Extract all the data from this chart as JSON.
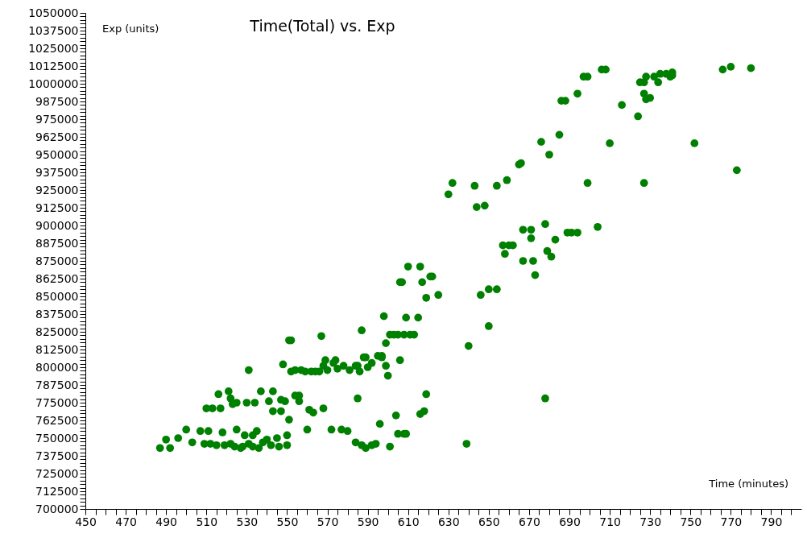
{
  "chart_data": {
    "type": "scatter",
    "title": "Time(Total) vs. Exp",
    "xlabel": "Time (minutes)",
    "ylabel": "Exp (units)",
    "color": "#008000",
    "marker": "circle",
    "grid": false,
    "xlim": [
      450,
      805
    ],
    "ylim": [
      700000,
      1050000
    ],
    "xticks": [
      450,
      {
        "value": 455,
        "label": null
      },
      {
        "value": 460,
        "label": null
      },
      {
        "value": 465,
        "label": null
      },
      470,
      {
        "value": 475,
        "label": null
      },
      {
        "value": 480,
        "label": null
      },
      {
        "value": 485,
        "label": null
      },
      490,
      {
        "value": 495,
        "label": null
      },
      {
        "value": 500,
        "label": null
      },
      {
        "value": 505,
        "label": null
      },
      510,
      {
        "value": 515,
        "label": null
      },
      {
        "value": 520,
        "label": null
      },
      {
        "value": 525,
        "label": null
      },
      530,
      {
        "value": 535,
        "label": null
      },
      {
        "value": 540,
        "label": null
      },
      {
        "value": 545,
        "label": null
      },
      550,
      {
        "value": 555,
        "label": null
      },
      {
        "value": 560,
        "label": null
      },
      {
        "value": 565,
        "label": null
      },
      570,
      {
        "value": 575,
        "label": null
      },
      {
        "value": 580,
        "label": null
      },
      {
        "value": 585,
        "label": null
      },
      590,
      {
        "value": 595,
        "label": null
      },
      {
        "value": 600,
        "label": null
      },
      {
        "value": 605,
        "label": null
      },
      610,
      {
        "value": 615,
        "label": null
      },
      {
        "value": 620,
        "label": null
      },
      {
        "value": 625,
        "label": null
      },
      630,
      {
        "value": 635,
        "label": null
      },
      {
        "value": 640,
        "label": null
      },
      {
        "value": 645,
        "label": null
      },
      650,
      {
        "value": 655,
        "label": null
      },
      {
        "value": 660,
        "label": null
      },
      {
        "value": 665,
        "label": null
      },
      670,
      {
        "value": 675,
        "label": null
      },
      {
        "value": 680,
        "label": null
      },
      {
        "value": 685,
        "label": null
      },
      690,
      {
        "value": 695,
        "label": null
      },
      {
        "value": 700,
        "label": null
      },
      {
        "value": 705,
        "label": null
      },
      710,
      {
        "value": 715,
        "label": null
      },
      {
        "value": 720,
        "label": null
      },
      {
        "value": 725,
        "label": null
      },
      730,
      {
        "value": 735,
        "label": null
      },
      {
        "value": 740,
        "label": null
      },
      {
        "value": 745,
        "label": null
      },
      750,
      {
        "value": 755,
        "label": null
      },
      {
        "value": 760,
        "label": null
      },
      {
        "value": 765,
        "label": null
      },
      770,
      {
        "value": 775,
        "label": null
      },
      {
        "value": 780,
        "label": null
      },
      {
        "value": 785,
        "label": null
      },
      790,
      {
        "value": 795,
        "label": null
      },
      {
        "value": 800,
        "label": null
      }
    ],
    "yticks": [
      700000,
      {
        "value": 702500,
        "label": null
      },
      {
        "value": 705000,
        "label": null
      },
      {
        "value": 707500,
        "label": null
      },
      {
        "value": 710000,
        "label": null
      },
      712500,
      {
        "value": 715000,
        "label": null
      },
      {
        "value": 717500,
        "label": null
      },
      {
        "value": 720000,
        "label": null
      },
      {
        "value": 722500,
        "label": null
      },
      725000,
      {
        "value": 727500,
        "label": null
      },
      {
        "value": 730000,
        "label": null
      },
      {
        "value": 732500,
        "label": null
      },
      {
        "value": 735000,
        "label": null
      },
      737500,
      {
        "value": 740000,
        "label": null
      },
      {
        "value": 742500,
        "label": null
      },
      {
        "value": 745000,
        "label": null
      },
      {
        "value": 747500,
        "label": null
      },
      750000,
      {
        "value": 752500,
        "label": null
      },
      {
        "value": 755000,
        "label": null
      },
      {
        "value": 757500,
        "label": null
      },
      {
        "value": 760000,
        "label": null
      },
      762500,
      {
        "value": 765000,
        "label": null
      },
      {
        "value": 767500,
        "label": null
      },
      {
        "value": 770000,
        "label": null
      },
      {
        "value": 772500,
        "label": null
      },
      775000,
      {
        "value": 777500,
        "label": null
      },
      {
        "value": 780000,
        "label": null
      },
      {
        "value": 782500,
        "label": null
      },
      {
        "value": 785000,
        "label": null
      },
      787500,
      {
        "value": 790000,
        "label": null
      },
      {
        "value": 792500,
        "label": null
      },
      {
        "value": 795000,
        "label": null
      },
      {
        "value": 797500,
        "label": null
      },
      800000,
      {
        "value": 802500,
        "label": null
      },
      {
        "value": 805000,
        "label": null
      },
      {
        "value": 807500,
        "label": null
      },
      {
        "value": 810000,
        "label": null
      },
      812500,
      {
        "value": 815000,
        "label": null
      },
      {
        "value": 817500,
        "label": null
      },
      {
        "value": 820000,
        "label": null
      },
      {
        "value": 822500,
        "label": null
      },
      825000,
      {
        "value": 827500,
        "label": null
      },
      {
        "value": 830000,
        "label": null
      },
      {
        "value": 832500,
        "label": null
      },
      {
        "value": 835000,
        "label": null
      },
      837500,
      {
        "value": 840000,
        "label": null
      },
      {
        "value": 842500,
        "label": null
      },
      {
        "value": 845000,
        "label": null
      },
      {
        "value": 847500,
        "label": null
      },
      850000,
      {
        "value": 852500,
        "label": null
      },
      {
        "value": 855000,
        "label": null
      },
      {
        "value": 857500,
        "label": null
      },
      {
        "value": 860000,
        "label": null
      },
      862500,
      {
        "value": 865000,
        "label": null
      },
      {
        "value": 867500,
        "label": null
      },
      {
        "value": 870000,
        "label": null
      },
      {
        "value": 872500,
        "label": null
      },
      875000,
      {
        "value": 877500,
        "label": null
      },
      {
        "value": 880000,
        "label": null
      },
      {
        "value": 882500,
        "label": null
      },
      {
        "value": 885000,
        "label": null
      },
      887500,
      {
        "value": 890000,
        "label": null
      },
      {
        "value": 892500,
        "label": null
      },
      {
        "value": 895000,
        "label": null
      },
      {
        "value": 897500,
        "label": null
      },
      900000,
      {
        "value": 902500,
        "label": null
      },
      {
        "value": 905000,
        "label": null
      },
      {
        "value": 907500,
        "label": null
      },
      {
        "value": 910000,
        "label": null
      },
      912500,
      {
        "value": 915000,
        "label": null
      },
      {
        "value": 917500,
        "label": null
      },
      {
        "value": 920000,
        "label": null
      },
      {
        "value": 922500,
        "label": null
      },
      925000,
      {
        "value": 927500,
        "label": null
      },
      {
        "value": 930000,
        "label": null
      },
      {
        "value": 932500,
        "label": null
      },
      {
        "value": 935000,
        "label": null
      },
      937500,
      {
        "value": 940000,
        "label": null
      },
      {
        "value": 942500,
        "label": null
      },
      {
        "value": 945000,
        "label": null
      },
      {
        "value": 947500,
        "label": null
      },
      950000,
      {
        "value": 952500,
        "label": null
      },
      {
        "value": 955000,
        "label": null
      },
      {
        "value": 957500,
        "label": null
      },
      {
        "value": 960000,
        "label": null
      },
      962500,
      {
        "value": 965000,
        "label": null
      },
      {
        "value": 967500,
        "label": null
      },
      {
        "value": 970000,
        "label": null
      },
      {
        "value": 972500,
        "label": null
      },
      975000,
      {
        "value": 977500,
        "label": null
      },
      {
        "value": 980000,
        "label": null
      },
      {
        "value": 982500,
        "label": null
      },
      {
        "value": 985000,
        "label": null
      },
      987500,
      {
        "value": 990000,
        "label": null
      },
      {
        "value": 992500,
        "label": null
      },
      {
        "value": 995000,
        "label": null
      },
      {
        "value": 997500,
        "label": null
      },
      1000000,
      {
        "value": 1002500,
        "label": null
      },
      {
        "value": 1005000,
        "label": null
      },
      {
        "value": 1007500,
        "label": null
      },
      {
        "value": 1010000,
        "label": null
      },
      1012500,
      {
        "value": 1015000,
        "label": null
      },
      {
        "value": 1017500,
        "label": null
      },
      {
        "value": 1020000,
        "label": null
      },
      {
        "value": 1022500,
        "label": null
      },
      1025000,
      {
        "value": 1027500,
        "label": null
      },
      {
        "value": 1030000,
        "label": null
      },
      {
        "value": 1032500,
        "label": null
      },
      {
        "value": 1035000,
        "label": null
      },
      1037500,
      {
        "value": 1040000,
        "label": null
      },
      {
        "value": 1042500,
        "label": null
      },
      {
        "value": 1045000,
        "label": null
      },
      {
        "value": 1047500,
        "label": null
      },
      1050000
    ],
    "x": [
      487,
      490,
      492,
      496,
      500,
      503,
      507,
      509,
      510,
      511,
      512,
      513,
      515,
      516,
      517,
      518,
      519,
      521,
      522,
      522,
      523,
      524,
      525,
      525,
      527,
      528,
      529,
      530,
      531,
      531,
      533,
      533,
      534,
      535,
      536,
      537,
      538,
      540,
      541,
      542,
      543,
      543,
      545,
      546,
      547,
      547,
      548,
      549,
      550,
      550,
      551,
      551,
      552,
      552,
      554,
      554,
      556,
      556,
      557,
      559,
      560,
      561,
      562,
      563,
      564,
      566,
      567,
      568,
      568,
      569,
      570,
      572,
      573,
      574,
      575,
      577,
      578,
      580,
      581,
      584,
      584,
      585,
      585,
      586,
      587,
      587,
      588,
      589,
      589,
      590,
      592,
      592,
      594,
      595,
      596,
      597,
      597,
      598,
      599,
      599,
      600,
      601,
      601,
      603,
      604,
      605,
      605,
      606,
      606,
      607,
      608,
      608,
      609,
      609,
      610,
      611,
      613,
      615,
      616,
      616,
      617,
      618,
      619,
      619,
      621,
      622,
      625,
      630,
      632,
      639,
      640,
      643,
      644,
      646,
      648,
      650,
      650,
      654,
      654,
      657,
      658,
      659,
      660,
      662,
      665,
      666,
      667,
      667,
      671,
      671,
      672,
      673,
      676,
      678,
      678,
      679,
      680,
      681,
      683,
      685,
      686,
      688,
      689,
      691,
      694,
      694,
      697,
      699,
      699,
      704,
      706,
      708,
      710,
      716,
      724,
      725,
      727,
      727,
      727,
      728,
      728,
      730,
      732,
      734,
      735,
      738,
      740,
      741,
      741,
      752,
      766,
      770,
      773,
      780
    ],
    "values": [
      743000,
      749000,
      743000,
      750000,
      756000,
      747000,
      755000,
      746000,
      771000,
      755000,
      746000,
      771000,
      745000,
      781000,
      771000,
      754000,
      745000,
      783000,
      778000,
      746000,
      774000,
      744000,
      756000,
      775000,
      743000,
      744000,
      752000,
      775000,
      798000,
      746000,
      744000,
      752000,
      775000,
      755000,
      743000,
      783000,
      747000,
      749000,
      776000,
      745000,
      769000,
      783000,
      750000,
      744000,
      777000,
      769000,
      802000,
      776000,
      745000,
      752000,
      763000,
      819000,
      819000,
      797000,
      798000,
      780000,
      780000,
      776000,
      798000,
      797000,
      756000,
      770000,
      797000,
      768000,
      797000,
      797000,
      822000,
      771000,
      801000,
      805000,
      798000,
      756000,
      803000,
      805000,
      799000,
      756000,
      801000,
      755000,
      798000,
      801000,
      747000,
      778000,
      801000,
      797000,
      826000,
      745000,
      807000,
      807000,
      743000,
      800000,
      745000,
      803000,
      746000,
      808000,
      760000,
      808000,
      807000,
      836000,
      801000,
      817000,
      794000,
      744000,
      823000,
      823000,
      766000,
      753000,
      823000,
      805000,
      860000,
      860000,
      753000,
      823000,
      835000,
      753000,
      871000,
      823000,
      823000,
      835000,
      871000,
      767000,
      860000,
      769000,
      781000,
      849000,
      864000,
      864000,
      851000,
      922000,
      930000,
      746000,
      815000,
      928000,
      913000,
      851000,
      914000,
      829000,
      855000,
      855000,
      928000,
      886000,
      880000,
      932000,
      886000,
      886000,
      943000,
      944000,
      897000,
      875000,
      897000,
      891000,
      875000,
      865000,
      959000,
      901000,
      778000,
      882000,
      950000,
      878000,
      890000,
      964000,
      988000,
      988000,
      895000,
      895000,
      895000,
      993000,
      1005000,
      1005000,
      930000,
      899000,
      1010000,
      1010000,
      958000,
      985000,
      977000,
      1001000,
      1001000,
      930000,
      993000,
      1005000,
      989000,
      990000,
      1005000,
      1001000,
      1007000,
      1007000,
      1005000,
      1008000,
      1006000,
      958000,
      1010000,
      1012000,
      939000,
      1011000
    ]
  }
}
